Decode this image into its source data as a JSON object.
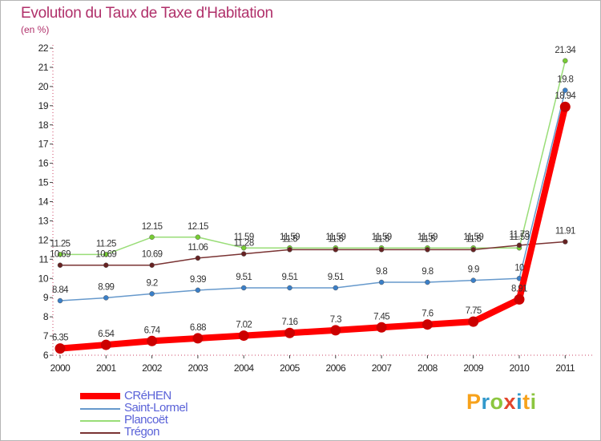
{
  "title": "Evolution du Taux de Taxe d'Habitation",
  "unit_label": "(en %)",
  "brand": {
    "letters": [
      "P",
      "r",
      "o",
      "x",
      "i",
      "t",
      "i"
    ],
    "colors": [
      "#f7a21b",
      "#3399cc",
      "#8cc63f",
      "#e2452b",
      "#3399cc",
      "#f7a21b",
      "#8cc63f"
    ]
  },
  "chart_data": {
    "type": "line",
    "title": "Evolution du Taux de Taxe d'Habitation",
    "ylabel": "(en %)",
    "xlabel": "",
    "ylim": [
      6,
      22
    ],
    "yticks": [
      "6",
      "7",
      "8",
      "9",
      "10",
      "11",
      "12",
      "13",
      "14",
      "15",
      "16",
      "17",
      "18",
      "19",
      "20",
      "21",
      "22"
    ],
    "x": [
      "2000",
      "2001",
      "2002",
      "2003",
      "2004",
      "2005",
      "2006",
      "2007",
      "2008",
      "2009",
      "2010",
      "2011"
    ],
    "legend_position": "bottom-left",
    "series": [
      {
        "name": "CRéHEN",
        "color": "#ff0000",
        "dot": "#cc0000",
        "width": 8,
        "values": [
          6.35,
          6.54,
          6.74,
          6.88,
          7.02,
          7.16,
          7.3,
          7.45,
          7.6,
          7.75,
          8.91,
          18.94
        ],
        "labels": [
          "6.35",
          "6.54",
          "6.74",
          "6.88",
          "7.02",
          "7.16",
          "7.3",
          "7.45",
          "7.6",
          "7.75",
          "8.91",
          "18.94"
        ]
      },
      {
        "name": "Saint-Lormel",
        "color": "#6699cc",
        "dot": "#3a7fc8",
        "width": 1.5,
        "values": [
          8.84,
          8.99,
          9.2,
          9.39,
          9.51,
          9.51,
          9.51,
          9.8,
          9.8,
          9.9,
          10,
          19.8
        ],
        "labels": [
          "8.84",
          "8.99",
          "9.2",
          "9.39",
          "9.51",
          "9.51",
          "9.51",
          "9.8",
          "9.8",
          "9.9",
          "10",
          "19.8"
        ]
      },
      {
        "name": "Plancoët",
        "color": "#99dd77",
        "dot": "#77cc33",
        "width": 1.5,
        "values": [
          11.25,
          11.25,
          12.15,
          12.15,
          11.59,
          11.59,
          11.59,
          11.59,
          11.59,
          11.59,
          11.59,
          21.34
        ],
        "labels": [
          "11.25",
          "11.25",
          "12.15",
          "12.15",
          "11.59",
          "11.59",
          "11.59",
          "11.59",
          "11.59",
          "11.59",
          "11.59",
          "21.34"
        ]
      },
      {
        "name": "Trégon",
        "color": "#7a3333",
        "dot": "#662222",
        "width": 1.5,
        "values": [
          10.69,
          10.69,
          10.69,
          11.06,
          11.28,
          11.5,
          11.5,
          11.5,
          11.5,
          11.5,
          11.73,
          11.91
        ],
        "labels": [
          "10.69",
          "10.69",
          "10.69",
          "11.06",
          "11.28",
          "11.5",
          "11.5",
          "11.5",
          "11.5",
          "11.5",
          "11.73",
          "11.91"
        ]
      }
    ]
  }
}
